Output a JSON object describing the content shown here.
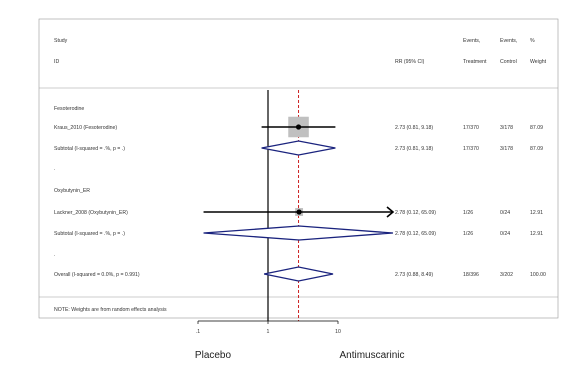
{
  "chart_data": {
    "type": "forest",
    "title": "",
    "header": {
      "study": "Study",
      "id": "ID",
      "rr": "RR (95% CI)",
      "events_treatment_top": "Events,",
      "events_treatment_bottom": "Treatment",
      "events_control_top": "Events,",
      "events_control_bottom": "Control",
      "weight_top": "%",
      "weight_bottom": "Weight"
    },
    "rows": [
      {
        "kind": "group",
        "label": "Fesoterodine"
      },
      {
        "kind": "study",
        "label": "Kraus_2010 (Fesoterodine)",
        "rr": 2.73,
        "lo": 0.81,
        "hi": 9.18,
        "ci_text": "2.73 (0.81, 9.18)",
        "treat": "17/370",
        "control": "3/178",
        "weight": "87.09",
        "weight_value": 87.09
      },
      {
        "kind": "subtotal",
        "label": "Subtotal  (I-squared = .%, p = .)",
        "rr": 2.73,
        "lo": 0.81,
        "hi": 9.18,
        "ci_text": "2.73 (0.81, 9.18)",
        "treat": "17/370",
        "control": "3/178",
        "weight": "87.09"
      },
      {
        "kind": "spacer",
        "label": "."
      },
      {
        "kind": "group",
        "label": "Oxybutynin_ER"
      },
      {
        "kind": "study",
        "label": "Lackner_2008 (Oxybutynin_ER)",
        "rr": 2.78,
        "lo": 0.12,
        "hi": 65.09,
        "ci_text": "2.78 (0.12, 65.09)",
        "treat": "1/26",
        "control": "0/24",
        "weight": "12.91",
        "weight_value": 12.91,
        "arrow_right": true
      },
      {
        "kind": "subtotal",
        "label": "Subtotal  (I-squared = .%, p = .)",
        "rr": 2.78,
        "lo": 0.12,
        "hi": 65.09,
        "ci_text": "2.78 (0.12, 65.09)",
        "treat": "1/26",
        "control": "0/24",
        "weight": "12.91"
      },
      {
        "kind": "spacer",
        "label": "."
      },
      {
        "kind": "overall",
        "label": "Overall  (I-squared = 0.0%, p = 0.991)",
        "rr": 2.73,
        "lo": 0.88,
        "hi": 8.49,
        "ci_text": "2.73 (0.88, 8.49)",
        "treat": "18/396",
        "control": "3/202",
        "weight": "100.00"
      }
    ],
    "note": "NOTE: Weights are from random effects analysis",
    "x_scale": "log",
    "x_ticks": [
      0.1,
      1,
      10
    ],
    "x_tick_labels": [
      ".1",
      "1",
      "10"
    ],
    "xlim": [
      0.1,
      10
    ],
    "null_value": 1,
    "overall_line_value": 2.73,
    "xlabel_left": "Placebo",
    "xlabel_right": "Antimuscarinic"
  }
}
